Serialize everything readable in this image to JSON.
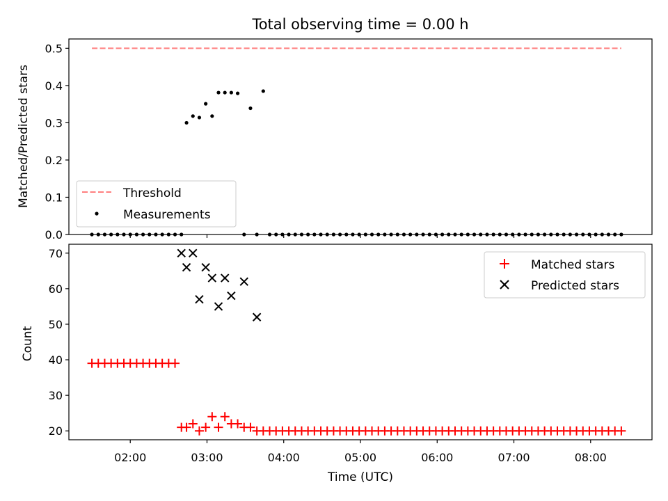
{
  "chart_data": [
    {
      "type": "scatter",
      "title": "Total observing time = 0.00 h",
      "xlabel": "",
      "ylabel": "Matched/Predicted stars",
      "xlim": [
        "01:12",
        "08:48"
      ],
      "ylim": [
        0,
        0.525
      ],
      "yticks": [
        0.0,
        0.1,
        0.2,
        0.3,
        0.4,
        0.5
      ],
      "ytick_labels": [
        "0.0",
        "0.1",
        "0.2",
        "0.3",
        "0.4",
        "0.5"
      ],
      "legend_position": "lower-left",
      "series": [
        {
          "name": "Threshold",
          "kind": "line",
          "style": "dashed",
          "color": "#ff7f7f",
          "x": [
            "01:30",
            "08:24"
          ],
          "y": [
            0.5,
            0.5
          ]
        },
        {
          "name": "Measurements",
          "kind": "points",
          "marker": "dot",
          "color": "#000000",
          "x": [
            "01:30",
            "01:35",
            "01:40",
            "01:45",
            "01:50",
            "01:55",
            "02:00",
            "02:05",
            "02:10",
            "02:15",
            "02:20",
            "02:25",
            "02:30",
            "02:35",
            "02:40",
            "02:44",
            "02:49",
            "02:54",
            "02:59",
            "03:04",
            "03:09",
            "03:14",
            "03:19",
            "03:24",
            "03:29",
            "03:34",
            "03:39",
            "03:44",
            "03:49",
            "03:54",
            "03:59",
            "04:04",
            "04:09",
            "04:14",
            "04:19",
            "04:24",
            "04:29",
            "04:34",
            "04:39",
            "04:44",
            "04:49",
            "04:54",
            "04:59",
            "05:04",
            "05:09",
            "05:14",
            "05:19",
            "05:24",
            "05:29",
            "05:34",
            "05:39",
            "05:44",
            "05:49",
            "05:54",
            "05:59",
            "06:04",
            "06:09",
            "06:14",
            "06:19",
            "06:24",
            "06:29",
            "06:34",
            "06:39",
            "06:44",
            "06:49",
            "06:54",
            "06:59",
            "07:04",
            "07:09",
            "07:14",
            "07:19",
            "07:24",
            "07:29",
            "07:34",
            "07:39",
            "07:44",
            "07:49",
            "07:54",
            "07:59",
            "08:04",
            "08:09",
            "08:14",
            "08:19",
            "08:24"
          ],
          "y": [
            0,
            0,
            0,
            0,
            0,
            0,
            0,
            0,
            0,
            0,
            0,
            0,
            0,
            0,
            0,
            0.3,
            0.318,
            0.314,
            0.351,
            0.318,
            0.381,
            0.381,
            0.381,
            0.379,
            0,
            0.339,
            0,
            0.385,
            0,
            0,
            0,
            0,
            0,
            0,
            0,
            0,
            0,
            0,
            0,
            0,
            0,
            0,
            0,
            0,
            0,
            0,
            0,
            0,
            0,
            0,
            0,
            0,
            0,
            0,
            0,
            0,
            0,
            0,
            0,
            0,
            0,
            0,
            0,
            0,
            0,
            0,
            0,
            0,
            0,
            0,
            0,
            0,
            0,
            0,
            0,
            0,
            0,
            0,
            0,
            0,
            0,
            0,
            0,
            0
          ]
        }
      ]
    },
    {
      "type": "scatter",
      "title": "",
      "xlabel": "Time (UTC)",
      "ylabel": "Count",
      "xlim": [
        "01:12",
        "08:48"
      ],
      "ylim": [
        17.5,
        72.5
      ],
      "xticks": [
        "02:00",
        "03:00",
        "04:00",
        "05:00",
        "06:00",
        "07:00",
        "08:00"
      ],
      "yticks": [
        20,
        30,
        40,
        50,
        60,
        70
      ],
      "ytick_labels": [
        "20",
        "30",
        "40",
        "50",
        "60",
        "70"
      ],
      "legend_position": "upper-right",
      "series": [
        {
          "name": "Matched stars",
          "marker": "plus",
          "color": "#ff0000",
          "x": [
            "01:30",
            "01:35",
            "01:40",
            "01:45",
            "01:50",
            "01:55",
            "02:00",
            "02:05",
            "02:10",
            "02:15",
            "02:20",
            "02:25",
            "02:30",
            "02:35",
            "02:40",
            "02:44",
            "02:49",
            "02:54",
            "02:59",
            "03:04",
            "03:09",
            "03:14",
            "03:19",
            "03:24",
            "03:29",
            "03:34",
            "03:39",
            "03:44",
            "03:49",
            "03:54",
            "03:59",
            "04:04",
            "04:09",
            "04:14",
            "04:19",
            "04:24",
            "04:29",
            "04:34",
            "04:39",
            "04:44",
            "04:49",
            "04:54",
            "04:59",
            "05:04",
            "05:09",
            "05:14",
            "05:19",
            "05:24",
            "05:29",
            "05:34",
            "05:39",
            "05:44",
            "05:49",
            "05:54",
            "05:59",
            "06:04",
            "06:09",
            "06:14",
            "06:19",
            "06:24",
            "06:29",
            "06:34",
            "06:39",
            "06:44",
            "06:49",
            "06:54",
            "06:59",
            "07:04",
            "07:09",
            "07:14",
            "07:19",
            "07:24",
            "07:29",
            "07:34",
            "07:39",
            "07:44",
            "07:49",
            "07:54",
            "07:59",
            "08:04",
            "08:09",
            "08:14",
            "08:19",
            "08:24"
          ],
          "y": [
            39,
            39,
            39,
            39,
            39,
            39,
            39,
            39,
            39,
            39,
            39,
            39,
            39,
            39,
            21,
            21,
            22,
            20,
            21,
            24,
            21,
            24,
            22,
            22,
            21,
            21,
            20,
            20,
            20,
            20,
            20,
            20,
            20,
            20,
            20,
            20,
            20,
            20,
            20,
            20,
            20,
            20,
            20,
            20,
            20,
            20,
            20,
            20,
            20,
            20,
            20,
            20,
            20,
            20,
            20,
            20,
            20,
            20,
            20,
            20,
            20,
            20,
            20,
            20,
            20,
            20,
            20,
            20,
            20,
            20,
            20,
            20,
            20,
            20,
            20,
            20,
            20,
            20,
            20,
            20,
            20,
            20,
            20,
            20
          ]
        },
        {
          "name": "Predicted stars",
          "marker": "x",
          "color": "#000000",
          "x": [
            "02:40",
            "02:44",
            "02:49",
            "02:54",
            "02:59",
            "03:04",
            "03:09",
            "03:14",
            "03:19",
            "03:29",
            "03:39"
          ],
          "y": [
            70,
            66,
            70,
            57,
            66,
            63,
            55,
            63,
            58,
            62,
            52
          ]
        }
      ]
    }
  ]
}
